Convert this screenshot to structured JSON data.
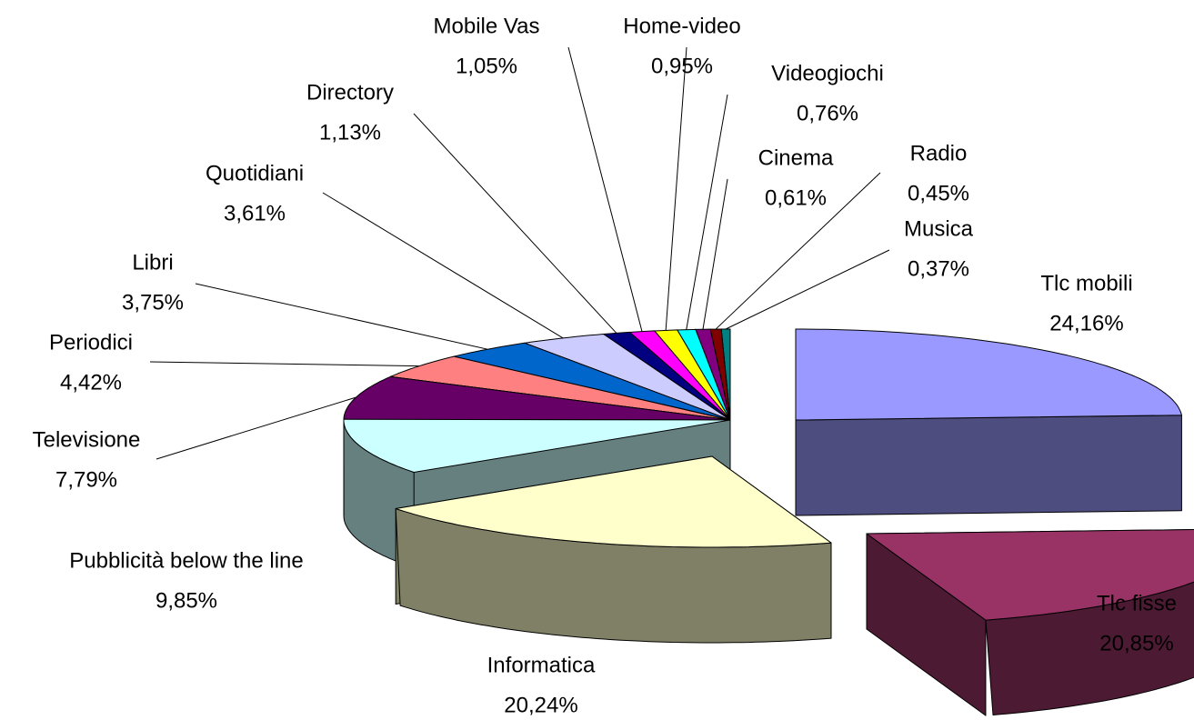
{
  "chart_data": {
    "type": "pie",
    "categories": [
      "Tlc mobili",
      "Tlc fisse",
      "Informatica",
      "Pubblicità below the line",
      "Televisione",
      "Periodici",
      "Libri",
      "Quotidiani",
      "Directory",
      "Mobile Vas",
      "Home-video",
      "Videogiochi",
      "Cinema",
      "Radio",
      "Musica"
    ],
    "values": [
      24.16,
      20.85,
      20.24,
      9.85,
      7.79,
      4.42,
      3.75,
      3.61,
      1.13,
      1.05,
      0.95,
      0.76,
      0.61,
      0.45,
      0.37
    ],
    "value_labels": [
      "24,16%",
      "20,85%",
      "20,24%",
      "9,85%",
      "7,79%",
      "4,42%",
      "3,75%",
      "3,61%",
      "1,13%",
      "1,05%",
      "0,95%",
      "0,76%",
      "0,61%",
      "0,45%",
      "0,37%"
    ],
    "colors": [
      "#9999ff",
      "#993366",
      "#ffffcc",
      "#ccffff",
      "#660066",
      "#ff8080",
      "#0066cc",
      "#ccccff",
      "#000080",
      "#ff00ff",
      "#ffff00",
      "#00ffff",
      "#800080",
      "#800000",
      "#008080"
    ]
  }
}
